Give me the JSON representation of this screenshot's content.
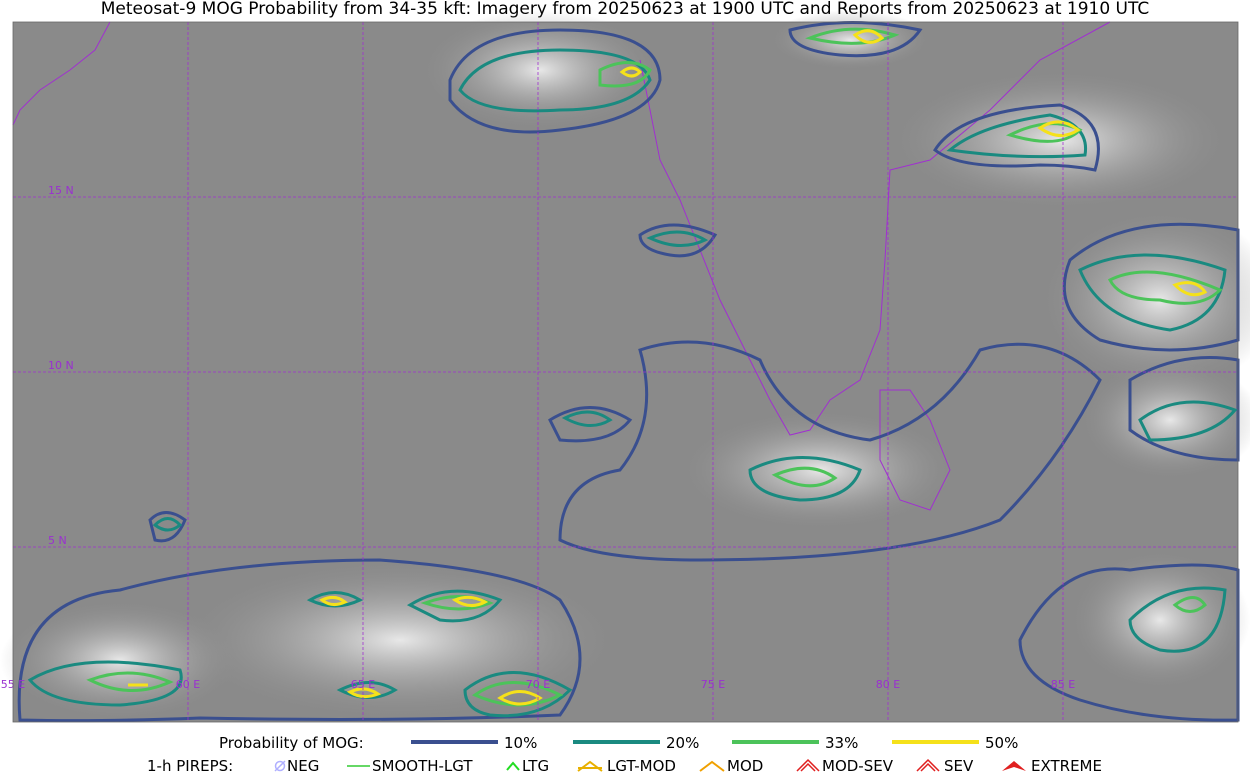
{
  "title": "Meteosat-9 MOG Probability from 34-35 kft: Imagery from 20250623 at 1900 UTC and Reports from 20250623 at 1910 UTC",
  "map": {
    "lat_labels": [
      "15 N",
      "10 N",
      "5 N"
    ],
    "lon_labels": [
      "55 E",
      "60 E",
      "65 E",
      "70 E",
      "75 E",
      "80 E",
      "85 E"
    ]
  },
  "legend": {
    "probability": {
      "label": "Probability of MOG:",
      "items": [
        {
          "label": "10%",
          "color": "#3a4f8f"
        },
        {
          "label": "20%",
          "color": "#1a8a80"
        },
        {
          "label": "33%",
          "color": "#4cc35a"
        },
        {
          "label": "50%",
          "color": "#f5e11a"
        }
      ]
    },
    "pireps": {
      "label": "1-h PIREPS:",
      "items": [
        "NEG",
        "SMOOTH-LGT",
        "LTG",
        "LGT-MOD",
        "MOD",
        "MOD-SEV",
        "SEV",
        "EXTREME"
      ]
    }
  }
}
